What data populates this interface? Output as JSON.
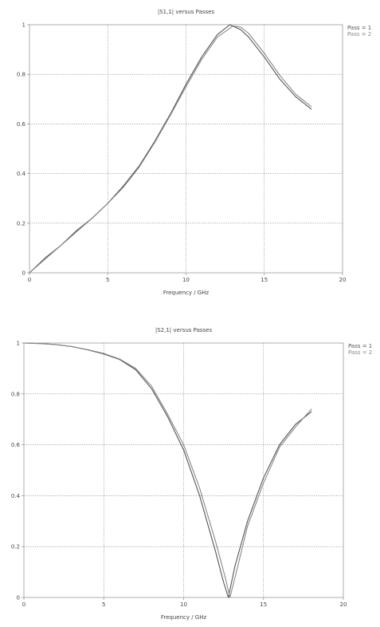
{
  "chart_data": [
    {
      "type": "line",
      "title": "|S1,1| versus Passes",
      "xlabel": "Frequency / GHz",
      "ylabel": "",
      "xlim": [
        0,
        20
      ],
      "ylim": [
        0,
        1
      ],
      "xticks": [
        0,
        5,
        10,
        15,
        20
      ],
      "yticks": [
        0,
        0.2,
        0.4,
        0.6,
        0.8,
        1
      ],
      "grid": true,
      "legend_position": "top-right",
      "series": [
        {
          "name": "Pass = 1",
          "color": "#555555",
          "x": [
            0,
            1,
            2,
            3,
            4,
            5,
            6,
            7,
            8,
            9,
            10,
            11,
            12,
            12.8,
            13.5,
            14,
            15,
            16,
            17,
            18
          ],
          "y": [
            0,
            0.06,
            0.11,
            0.17,
            0.22,
            0.28,
            0.35,
            0.43,
            0.53,
            0.64,
            0.76,
            0.87,
            0.96,
            1.0,
            0.98,
            0.95,
            0.87,
            0.78,
            0.71,
            0.66
          ]
        },
        {
          "name": "Pass = 2",
          "color": "#888888",
          "x": [
            0,
            1,
            2,
            3,
            4,
            5,
            6,
            7,
            8,
            9,
            10,
            11,
            12,
            13,
            13.5,
            14,
            15,
            16,
            17,
            18
          ],
          "y": [
            0,
            0.055,
            0.11,
            0.165,
            0.22,
            0.28,
            0.345,
            0.425,
            0.525,
            0.635,
            0.75,
            0.86,
            0.95,
            0.995,
            0.99,
            0.965,
            0.885,
            0.795,
            0.72,
            0.67
          ]
        }
      ]
    },
    {
      "type": "line",
      "title": "|S2,1| versus Passes",
      "xlabel": "Frequency / GHz",
      "ylabel": "",
      "xlim": [
        0,
        20
      ],
      "ylim": [
        0,
        1
      ],
      "xticks": [
        0,
        5,
        10,
        15,
        20
      ],
      "yticks": [
        0,
        0.2,
        0.4,
        0.6,
        0.8,
        1
      ],
      "grid": true,
      "legend_position": "top-right",
      "series": [
        {
          "name": "Pass = 1",
          "color": "#555555",
          "x": [
            0,
            1,
            2,
            3,
            4,
            5,
            6,
            7,
            8,
            9,
            10,
            11,
            12,
            12.5,
            12.8,
            13.2,
            14,
            15,
            16,
            17,
            18
          ],
          "y": [
            1.0,
            0.998,
            0.994,
            0.986,
            0.973,
            0.957,
            0.935,
            0.895,
            0.82,
            0.71,
            0.58,
            0.4,
            0.18,
            0.06,
            0.0,
            0.12,
            0.3,
            0.47,
            0.6,
            0.68,
            0.73
          ]
        },
        {
          "name": "Pass = 2",
          "color": "#888888",
          "x": [
            0,
            1,
            2,
            3,
            4,
            5,
            6,
            7,
            8,
            9,
            10,
            11,
            12,
            12.6,
            12.9,
            13.3,
            14,
            15,
            16,
            17,
            18
          ],
          "y": [
            1.0,
            0.998,
            0.994,
            0.986,
            0.974,
            0.959,
            0.937,
            0.9,
            0.83,
            0.72,
            0.6,
            0.43,
            0.22,
            0.08,
            0.0,
            0.1,
            0.28,
            0.45,
            0.59,
            0.67,
            0.74
          ]
        }
      ]
    }
  ]
}
